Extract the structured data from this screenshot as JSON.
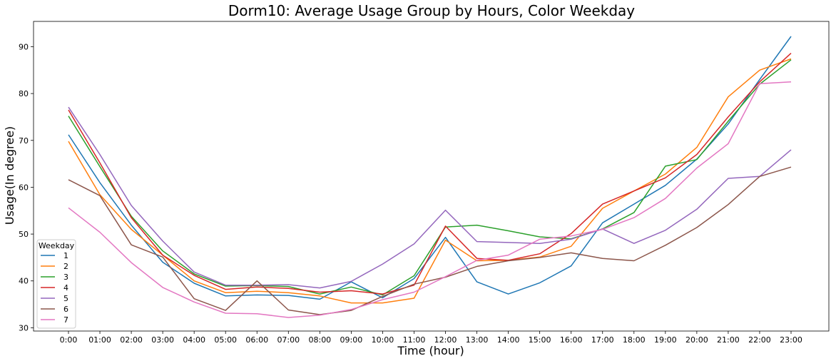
{
  "chart_data": {
    "type": "line",
    "title": "Dorm10: Average Usage Group by Hours, Color Weekday",
    "xlabel": "Time (hour)",
    "ylabel": "Usage(In degree)",
    "categories": [
      "0:00",
      "01:00",
      "02:00",
      "03:00",
      "04:00",
      "05:00",
      "06:00",
      "07:00",
      "08:00",
      "09:00",
      "10:00",
      "11:00",
      "12:00",
      "13:00",
      "14:00",
      "15:00",
      "16:00",
      "17:00",
      "18:00",
      "19:00",
      "20:00",
      "21:00",
      "22:00",
      "23:00"
    ],
    "ylim": [
      29.3,
      95.4
    ],
    "yticks": [
      30,
      40,
      50,
      60,
      70,
      80,
      90
    ],
    "grid": false,
    "legend": {
      "title": "Weekday",
      "placement": "lower-left"
    },
    "series": [
      {
        "name": "1",
        "color": "#1f77b4",
        "values": [
          71.2,
          61.0,
          51.9,
          44.0,
          39.5,
          36.8,
          37.0,
          36.9,
          36.1,
          39.8,
          36.4,
          40.5,
          49.3,
          39.8,
          37.2,
          39.6,
          43.2,
          52.4,
          56.4,
          60.4,
          66.0,
          73.5,
          83.0,
          92.2
        ]
      },
      {
        "name": "2",
        "color": "#ff7f0e",
        "values": [
          69.8,
          58.4,
          51.0,
          45.5,
          40.0,
          37.5,
          37.8,
          37.5,
          36.8,
          35.3,
          35.3,
          36.3,
          48.7,
          44.3,
          44.4,
          45.1,
          47.4,
          55.5,
          59.2,
          62.8,
          68.5,
          79.3,
          85.0,
          87.4
        ]
      },
      {
        "name": "3",
        "color": "#2ca02c",
        "values": [
          75.2,
          64.4,
          53.8,
          46.4,
          41.5,
          38.9,
          39.0,
          38.8,
          37.2,
          38.7,
          37.0,
          41.1,
          51.5,
          51.9,
          50.7,
          49.4,
          49.0,
          51.1,
          54.6,
          64.5,
          65.9,
          74.1,
          82.0,
          87.2
        ]
      },
      {
        "name": "4",
        "color": "#d62728",
        "values": [
          76.5,
          65.2,
          53.5,
          45.5,
          41.2,
          38.2,
          38.7,
          38.4,
          37.6,
          37.9,
          37.2,
          39.1,
          51.7,
          44.8,
          44.4,
          45.8,
          50.1,
          56.4,
          59.2,
          62.0,
          67.0,
          75.0,
          82.5,
          88.6
        ]
      },
      {
        "name": "5",
        "color": "#9467bd",
        "values": [
          77.1,
          67.0,
          56.1,
          48.5,
          41.9,
          39.1,
          39.1,
          39.2,
          38.5,
          39.9,
          43.6,
          47.9,
          55.1,
          48.4,
          48.2,
          48.0,
          48.9,
          51.1,
          48.0,
          50.8,
          55.3,
          61.9,
          62.3,
          68.0
        ]
      },
      {
        "name": "6",
        "color": "#8c564b",
        "values": [
          61.6,
          58.2,
          47.7,
          45.1,
          36.2,
          33.7,
          40.0,
          33.8,
          32.8,
          33.7,
          36.7,
          39.3,
          40.8,
          43.1,
          44.3,
          45.0,
          46.0,
          44.8,
          44.3,
          47.6,
          51.4,
          56.3,
          62.3,
          64.3
        ]
      },
      {
        "name": "7",
        "color": "#e377c2",
        "values": [
          55.6,
          50.4,
          43.9,
          38.6,
          35.5,
          33.1,
          33.0,
          32.2,
          32.7,
          33.9,
          36.0,
          37.6,
          40.9,
          44.4,
          45.5,
          48.9,
          49.6,
          51.0,
          53.5,
          57.6,
          64.1,
          69.3,
          82.1,
          82.5
        ]
      }
    ]
  }
}
